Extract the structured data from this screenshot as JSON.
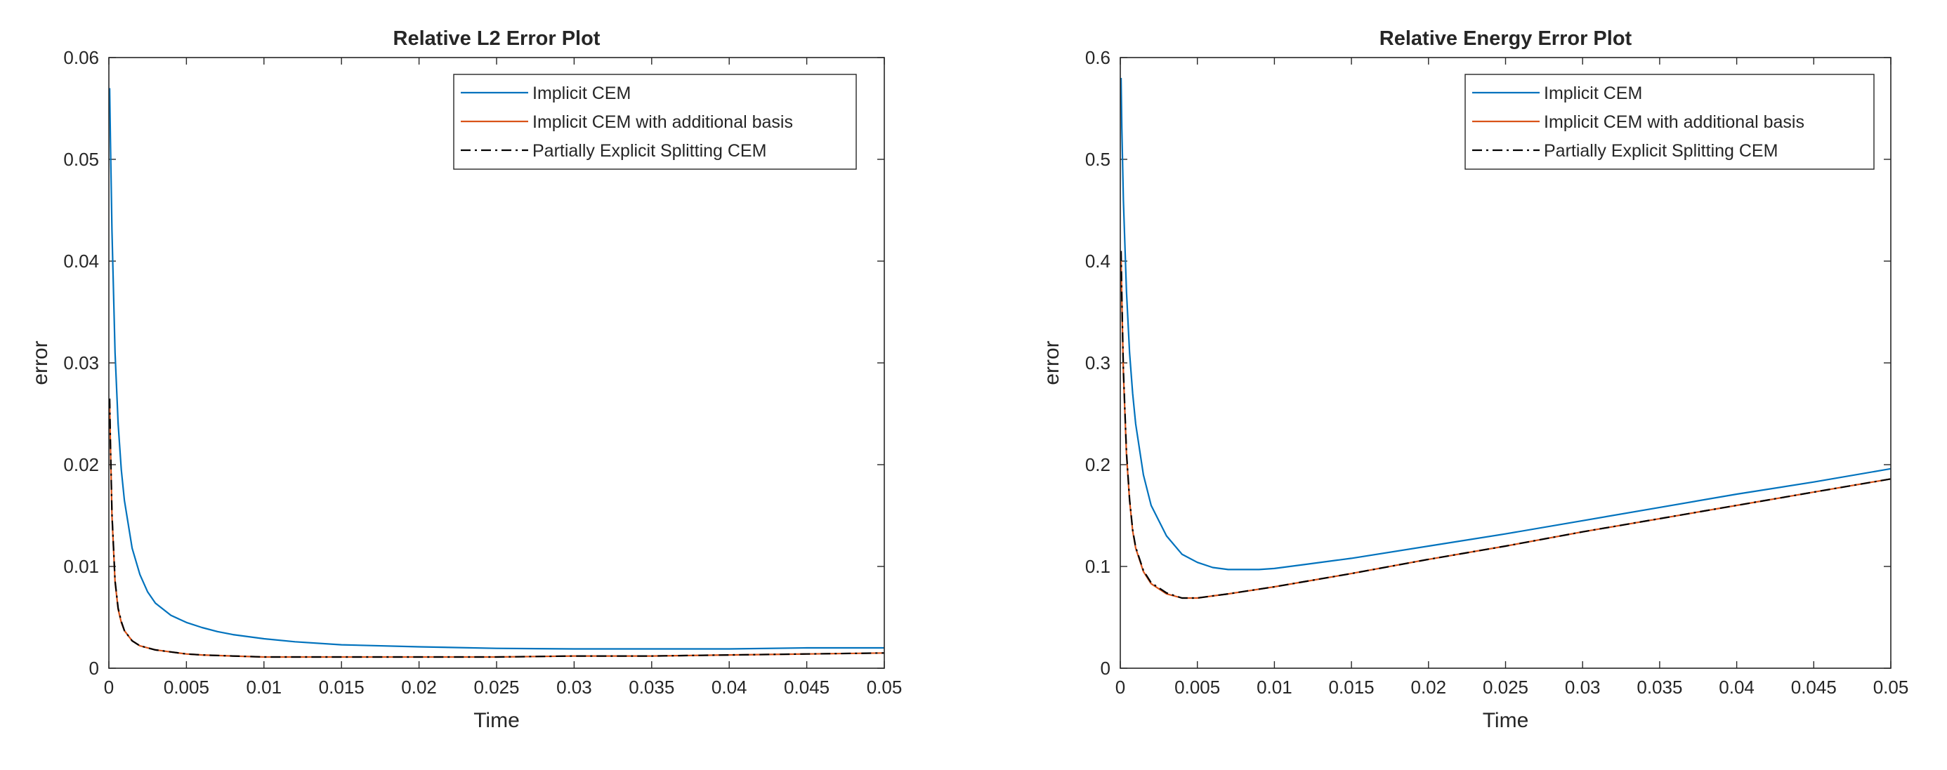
{
  "chart_data": [
    {
      "type": "line",
      "title": "Relative L2 Error Plot",
      "xlabel": "Time",
      "ylabel": "error",
      "xlim": [
        0,
        0.05
      ],
      "ylim": [
        0,
        0.06
      ],
      "xticks": [
        "0",
        "0.005",
        "0.01",
        "0.015",
        "0.02",
        "0.025",
        "0.03",
        "0.035",
        "0.04",
        "0.045",
        "0.05"
      ],
      "yticks": [
        "0",
        "0.01",
        "0.02",
        "0.03",
        "0.04",
        "0.05",
        "0.06"
      ],
      "legend_position": "top-right",
      "series": [
        {
          "name": "Implicit CEM",
          "color": "#0072BD",
          "style": "solid",
          "points": [
            [
              5e-05,
              0.057
            ],
            [
              0.0001,
              0.052
            ],
            [
              0.0002,
              0.043
            ],
            [
              0.0004,
              0.031
            ],
            [
              0.0006,
              0.024
            ],
            [
              0.0008,
              0.0195
            ],
            [
              0.001,
              0.0165
            ],
            [
              0.0015,
              0.0118
            ],
            [
              0.002,
              0.0092
            ],
            [
              0.0025,
              0.0075
            ],
            [
              0.003,
              0.0064
            ],
            [
              0.004,
              0.0052
            ],
            [
              0.005,
              0.0045
            ],
            [
              0.006,
              0.004
            ],
            [
              0.007,
              0.0036
            ],
            [
              0.008,
              0.0033
            ],
            [
              0.01,
              0.0029
            ],
            [
              0.012,
              0.0026
            ],
            [
              0.015,
              0.0023
            ],
            [
              0.02,
              0.0021
            ],
            [
              0.025,
              0.00195
            ],
            [
              0.03,
              0.0019
            ],
            [
              0.035,
              0.0019
            ],
            [
              0.04,
              0.0019
            ],
            [
              0.045,
              0.002
            ],
            [
              0.05,
              0.002
            ]
          ]
        },
        {
          "name": "Implicit CEM with additional basis",
          "color": "#D95319",
          "style": "solid",
          "points": [
            [
              5e-05,
              0.026
            ],
            [
              0.0001,
              0.022
            ],
            [
              0.0002,
              0.015
            ],
            [
              0.0004,
              0.0085
            ],
            [
              0.0006,
              0.0058
            ],
            [
              0.0008,
              0.0045
            ],
            [
              0.001,
              0.0037
            ],
            [
              0.0015,
              0.0027
            ],
            [
              0.002,
              0.0022
            ],
            [
              0.003,
              0.0018
            ],
            [
              0.004,
              0.0016
            ],
            [
              0.005,
              0.0014
            ],
            [
              0.006,
              0.0013
            ],
            [
              0.008,
              0.0012
            ],
            [
              0.01,
              0.0011
            ],
            [
              0.015,
              0.0011
            ],
            [
              0.02,
              0.0011
            ],
            [
              0.025,
              0.0011
            ],
            [
              0.03,
              0.0012
            ],
            [
              0.035,
              0.0012
            ],
            [
              0.04,
              0.0013
            ],
            [
              0.045,
              0.0014
            ],
            [
              0.05,
              0.0015
            ]
          ]
        },
        {
          "name": "Partially Explicit Splitting CEM",
          "color": "#000000",
          "style": "dashdot",
          "points": [
            [
              5e-05,
              0.0265
            ],
            [
              0.0001,
              0.0222
            ],
            [
              0.0002,
              0.0152
            ],
            [
              0.0004,
              0.0086
            ],
            [
              0.0006,
              0.0059
            ],
            [
              0.0008,
              0.0046
            ],
            [
              0.001,
              0.0037
            ],
            [
              0.0015,
              0.0027
            ],
            [
              0.002,
              0.0022
            ],
            [
              0.003,
              0.0018
            ],
            [
              0.004,
              0.0016
            ],
            [
              0.005,
              0.0014
            ],
            [
              0.006,
              0.0013
            ],
            [
              0.008,
              0.0012
            ],
            [
              0.01,
              0.0011
            ],
            [
              0.015,
              0.0011
            ],
            [
              0.02,
              0.0011
            ],
            [
              0.025,
              0.0011
            ],
            [
              0.03,
              0.0012
            ],
            [
              0.035,
              0.0012
            ],
            [
              0.04,
              0.0013
            ],
            [
              0.045,
              0.0014
            ],
            [
              0.05,
              0.0015
            ]
          ]
        }
      ]
    },
    {
      "type": "line",
      "title": "Relative Energy Error Plot",
      "xlabel": "Time",
      "ylabel": "error",
      "xlim": [
        0,
        0.05
      ],
      "ylim": [
        0,
        0.6
      ],
      "xticks": [
        "0",
        "0.005",
        "0.01",
        "0.015",
        "0.02",
        "0.025",
        "0.03",
        "0.035",
        "0.04",
        "0.045",
        "0.05"
      ],
      "yticks": [
        "0",
        "0.1",
        "0.2",
        "0.3",
        "0.4",
        "0.5",
        "0.6"
      ],
      "legend_position": "top-right",
      "series": [
        {
          "name": "Implicit CEM",
          "color": "#0072BD",
          "style": "solid",
          "points": [
            [
              5e-05,
              0.58
            ],
            [
              0.0001,
              0.53
            ],
            [
              0.0002,
              0.46
            ],
            [
              0.0004,
              0.37
            ],
            [
              0.0006,
              0.31
            ],
            [
              0.0008,
              0.27
            ],
            [
              0.001,
              0.24
            ],
            [
              0.0015,
              0.19
            ],
            [
              0.002,
              0.16
            ],
            [
              0.003,
              0.13
            ],
            [
              0.004,
              0.112
            ],
            [
              0.005,
              0.104
            ],
            [
              0.006,
              0.099
            ],
            [
              0.007,
              0.097
            ],
            [
              0.008,
              0.097
            ],
            [
              0.009,
              0.097
            ],
            [
              0.01,
              0.098
            ],
            [
              0.012,
              0.102
            ],
            [
              0.015,
              0.108
            ],
            [
              0.02,
              0.12
            ],
            [
              0.025,
              0.132
            ],
            [
              0.03,
              0.145
            ],
            [
              0.035,
              0.158
            ],
            [
              0.04,
              0.171
            ],
            [
              0.045,
              0.183
            ],
            [
              0.05,
              0.196
            ]
          ]
        },
        {
          "name": "Implicit CEM with additional basis",
          "color": "#D95319",
          "style": "solid",
          "points": [
            [
              5e-05,
              0.4
            ],
            [
              0.0001,
              0.36
            ],
            [
              0.0002,
              0.29
            ],
            [
              0.0004,
              0.21
            ],
            [
              0.0006,
              0.165
            ],
            [
              0.0008,
              0.135
            ],
            [
              0.001,
              0.118
            ],
            [
              0.0015,
              0.095
            ],
            [
              0.002,
              0.083
            ],
            [
              0.003,
              0.073
            ],
            [
              0.004,
              0.069
            ],
            [
              0.005,
              0.069
            ],
            [
              0.006,
              0.071
            ],
            [
              0.007,
              0.073
            ],
            [
              0.01,
              0.08
            ],
            [
              0.015,
              0.093
            ],
            [
              0.02,
              0.107
            ],
            [
              0.025,
              0.12
            ],
            [
              0.03,
              0.134
            ],
            [
              0.035,
              0.147
            ],
            [
              0.04,
              0.16
            ],
            [
              0.045,
              0.173
            ],
            [
              0.05,
              0.186
            ]
          ]
        },
        {
          "name": "Partially Explicit Splitting CEM",
          "color": "#000000",
          "style": "dashdot",
          "points": [
            [
              5e-05,
              0.41
            ],
            [
              0.0001,
              0.365
            ],
            [
              0.0002,
              0.293
            ],
            [
              0.0004,
              0.212
            ],
            [
              0.0006,
              0.166
            ],
            [
              0.0008,
              0.136
            ],
            [
              0.001,
              0.119
            ],
            [
              0.0015,
              0.096
            ],
            [
              0.002,
              0.084
            ],
            [
              0.003,
              0.074
            ],
            [
              0.004,
              0.069
            ],
            [
              0.005,
              0.069
            ],
            [
              0.006,
              0.071
            ],
            [
              0.007,
              0.073
            ],
            [
              0.01,
              0.08
            ],
            [
              0.015,
              0.093
            ],
            [
              0.02,
              0.107
            ],
            [
              0.025,
              0.12
            ],
            [
              0.03,
              0.134
            ],
            [
              0.035,
              0.147
            ],
            [
              0.04,
              0.16
            ],
            [
              0.045,
              0.173
            ],
            [
              0.05,
              0.186
            ]
          ]
        }
      ]
    }
  ]
}
